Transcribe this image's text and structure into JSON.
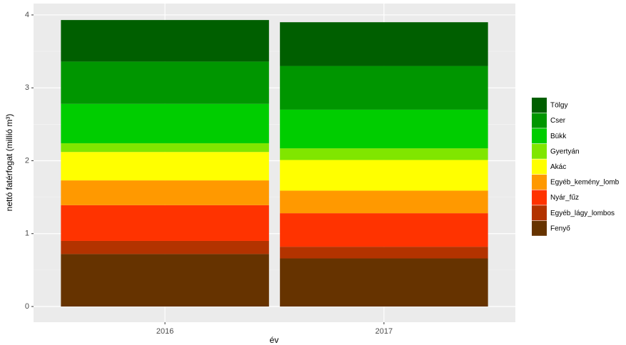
{
  "chart_data": {
    "type": "stacked_bar",
    "x_label": "év",
    "y_label": "nettó fatérfogat (millió m³)",
    "categories": [
      "2016",
      "2017"
    ],
    "series": [
      {
        "name": "Tölgy",
        "color": "#005f00",
        "values": [
          0.57,
          0.6
        ]
      },
      {
        "name": "Cser",
        "color": "#009600",
        "values": [
          0.58,
          0.6
        ]
      },
      {
        "name": "Bükk",
        "color": "#00cd00",
        "values": [
          0.54,
          0.53
        ]
      },
      {
        "name": "Gyertyán",
        "color": "#80e600",
        "values": [
          0.12,
          0.16
        ]
      },
      {
        "name": "Akác",
        "color": "#ffff00",
        "values": [
          0.39,
          0.42
        ]
      },
      {
        "name": "Egyéb_kemény_lomb",
        "color": "#ff9900",
        "values": [
          0.34,
          0.31
        ]
      },
      {
        "name": "Nyár_fűz",
        "color": "#ff3300",
        "values": [
          0.49,
          0.46
        ]
      },
      {
        "name": "Egyéb_lágy_lombos",
        "color": "#b33300",
        "values": [
          0.18,
          0.16
        ]
      },
      {
        "name": "Fenyő",
        "color": "#663300",
        "values": [
          0.72,
          0.66
        ]
      }
    ],
    "ylim": [
      -0.215,
      4.156
    ],
    "yticks": [
      0,
      1,
      2,
      3,
      4
    ],
    "grid": true,
    "legend": "right"
  }
}
